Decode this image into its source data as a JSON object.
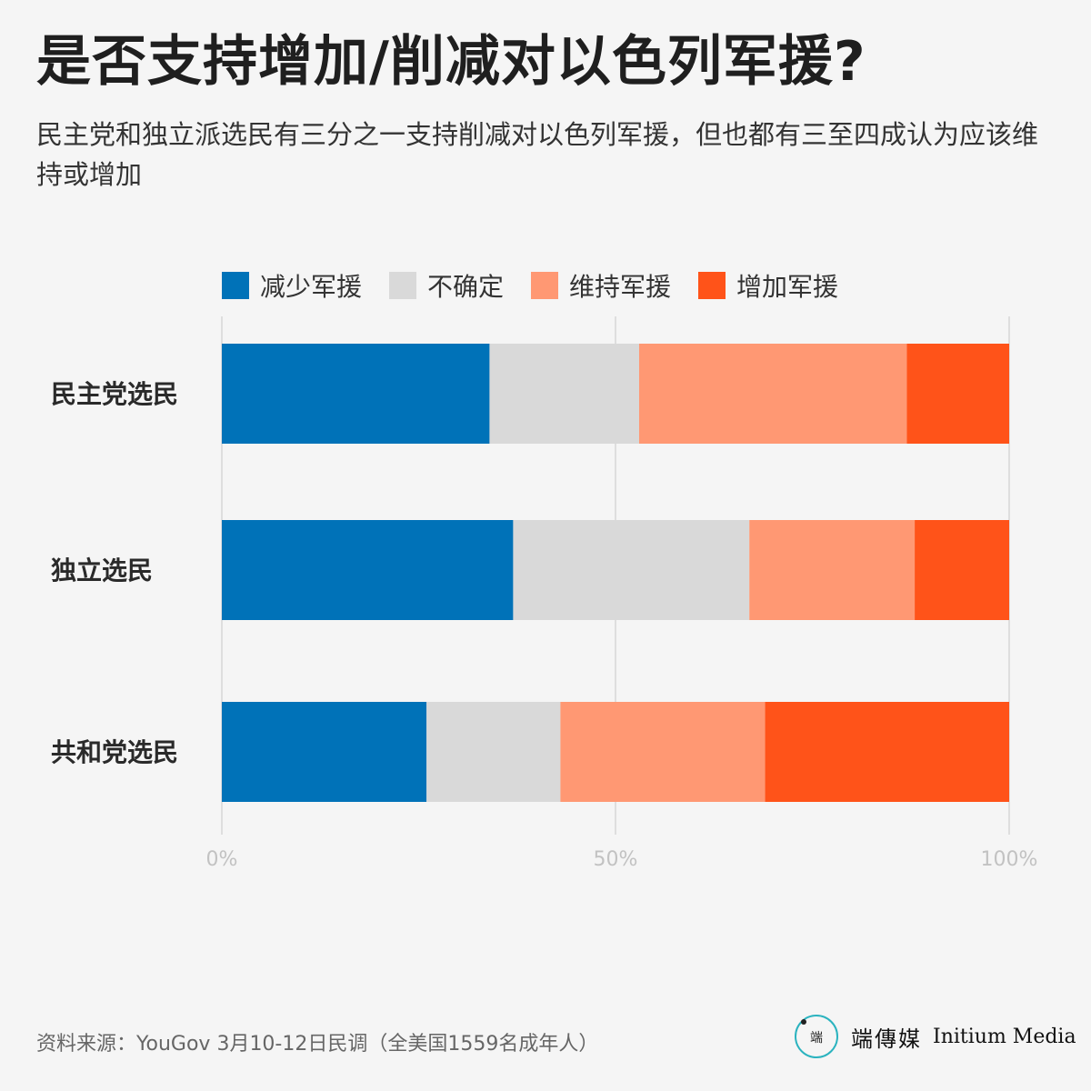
{
  "title": "是否支持增加/削减对以色列军援?",
  "subtitle": "民主党和独立派选民有三分之一支持削减对以色列军援，但也都有三至四成认为应该维持或增加",
  "legend": [
    {
      "label": "减少军援",
      "color": "#0072b8"
    },
    {
      "label": "不确定",
      "color": "#d9d9d9"
    },
    {
      "label": "维持军援",
      "color": "#ff9873"
    },
    {
      "label": "增加军援",
      "color": "#ff5319"
    }
  ],
  "chart_data": {
    "type": "bar",
    "orientation": "horizontal",
    "stacked": true,
    "normalized_percent": true,
    "categories": [
      "民主党选民",
      "独立选民",
      "共和党选民"
    ],
    "series": [
      {
        "name": "减少军援",
        "color": "#0072b8",
        "values": [
          34,
          37,
          26
        ]
      },
      {
        "name": "不确定",
        "color": "#d9d9d9",
        "values": [
          19,
          30,
          17
        ]
      },
      {
        "name": "维持军援",
        "color": "#ff9873",
        "values": [
          34,
          21,
          26
        ]
      },
      {
        "name": "增加军援",
        "color": "#ff5319",
        "values": [
          13,
          12,
          31
        ]
      }
    ],
    "x_ticks": [
      "0%",
      "50%",
      "100%"
    ],
    "xlim": [
      0,
      100
    ],
    "grid": true,
    "legend_position": "top"
  },
  "source": "资料来源：YouGov 3月10-12日民调（全美国1559名成年人）",
  "brand": {
    "logo_mark": "端",
    "name_cn": "端傳媒",
    "name_en": "Initium Media"
  }
}
